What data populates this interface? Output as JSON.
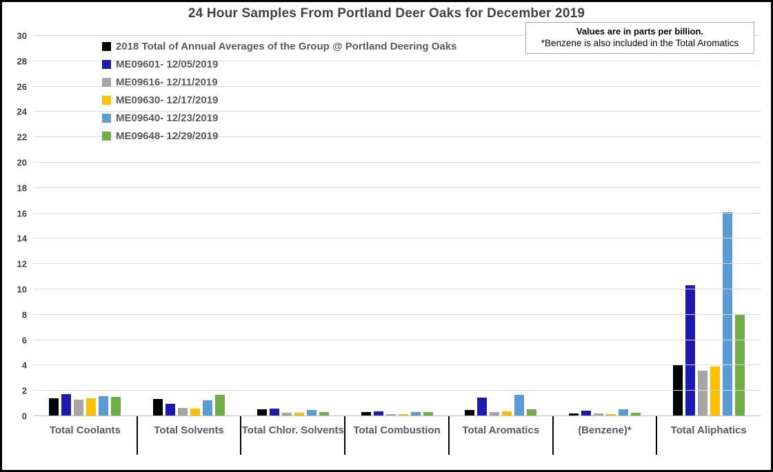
{
  "title": "24 Hour Samples From Portland Deer Oaks for December 2019",
  "note": {
    "line1": "Values are in parts per billion.",
    "line2": "*Benzene is also included in the Total Aromatics"
  },
  "chart_data": {
    "type": "bar",
    "title": "24 Hour Samples From Portland Deer Oaks for December 2019",
    "xlabel": "",
    "ylabel": "",
    "ylim": [
      0,
      30
    ],
    "ytick_step": 2,
    "grid": true,
    "legend_position": "top-left-inside",
    "units": "parts per billion",
    "categories": [
      "Total Coolants",
      "Total Solvents",
      "Total Chlor. Solvents",
      "Total Combustion",
      "Total Aromatics",
      "(Benzene)*",
      "Total Aliphatics"
    ],
    "series": [
      {
        "name": "2018 Total of Annual Averages of the Group @ Portland Deering Oaks",
        "color": "#000000",
        "values": [
          1.4,
          1.35,
          0.55,
          0.3,
          0.5,
          0.2,
          4.0
        ]
      },
      {
        "name": "ME09601- 12/05/2019",
        "color": "#1B1CAD",
        "values": [
          1.75,
          1.0,
          0.6,
          0.4,
          1.45,
          0.45,
          10.35
        ]
      },
      {
        "name": "ME09616- 12/11/2019",
        "color": "#A6A6A6",
        "values": [
          1.3,
          0.65,
          0.25,
          0.15,
          0.3,
          0.2,
          3.6
        ]
      },
      {
        "name": "ME09630- 12/17/2019",
        "color": "#FFC000",
        "values": [
          1.4,
          0.6,
          0.25,
          0.15,
          0.4,
          0.15,
          3.9
        ]
      },
      {
        "name": "ME09640- 12/23/2019",
        "color": "#5B9BD5",
        "values": [
          1.55,
          1.25,
          0.5,
          0.3,
          1.7,
          0.55,
          16.1
        ]
      },
      {
        "name": "ME09648- 12/29/2019",
        "color": "#70AD47",
        "values": [
          1.5,
          1.7,
          0.35,
          0.35,
          0.55,
          0.25,
          8.05
        ]
      }
    ]
  },
  "colors": {
    "gridline": "#d9d9d9",
    "axis_line": "#bfbfbf",
    "title_text": "#404040",
    "category_text": "#595959",
    "separator": "#000000"
  }
}
